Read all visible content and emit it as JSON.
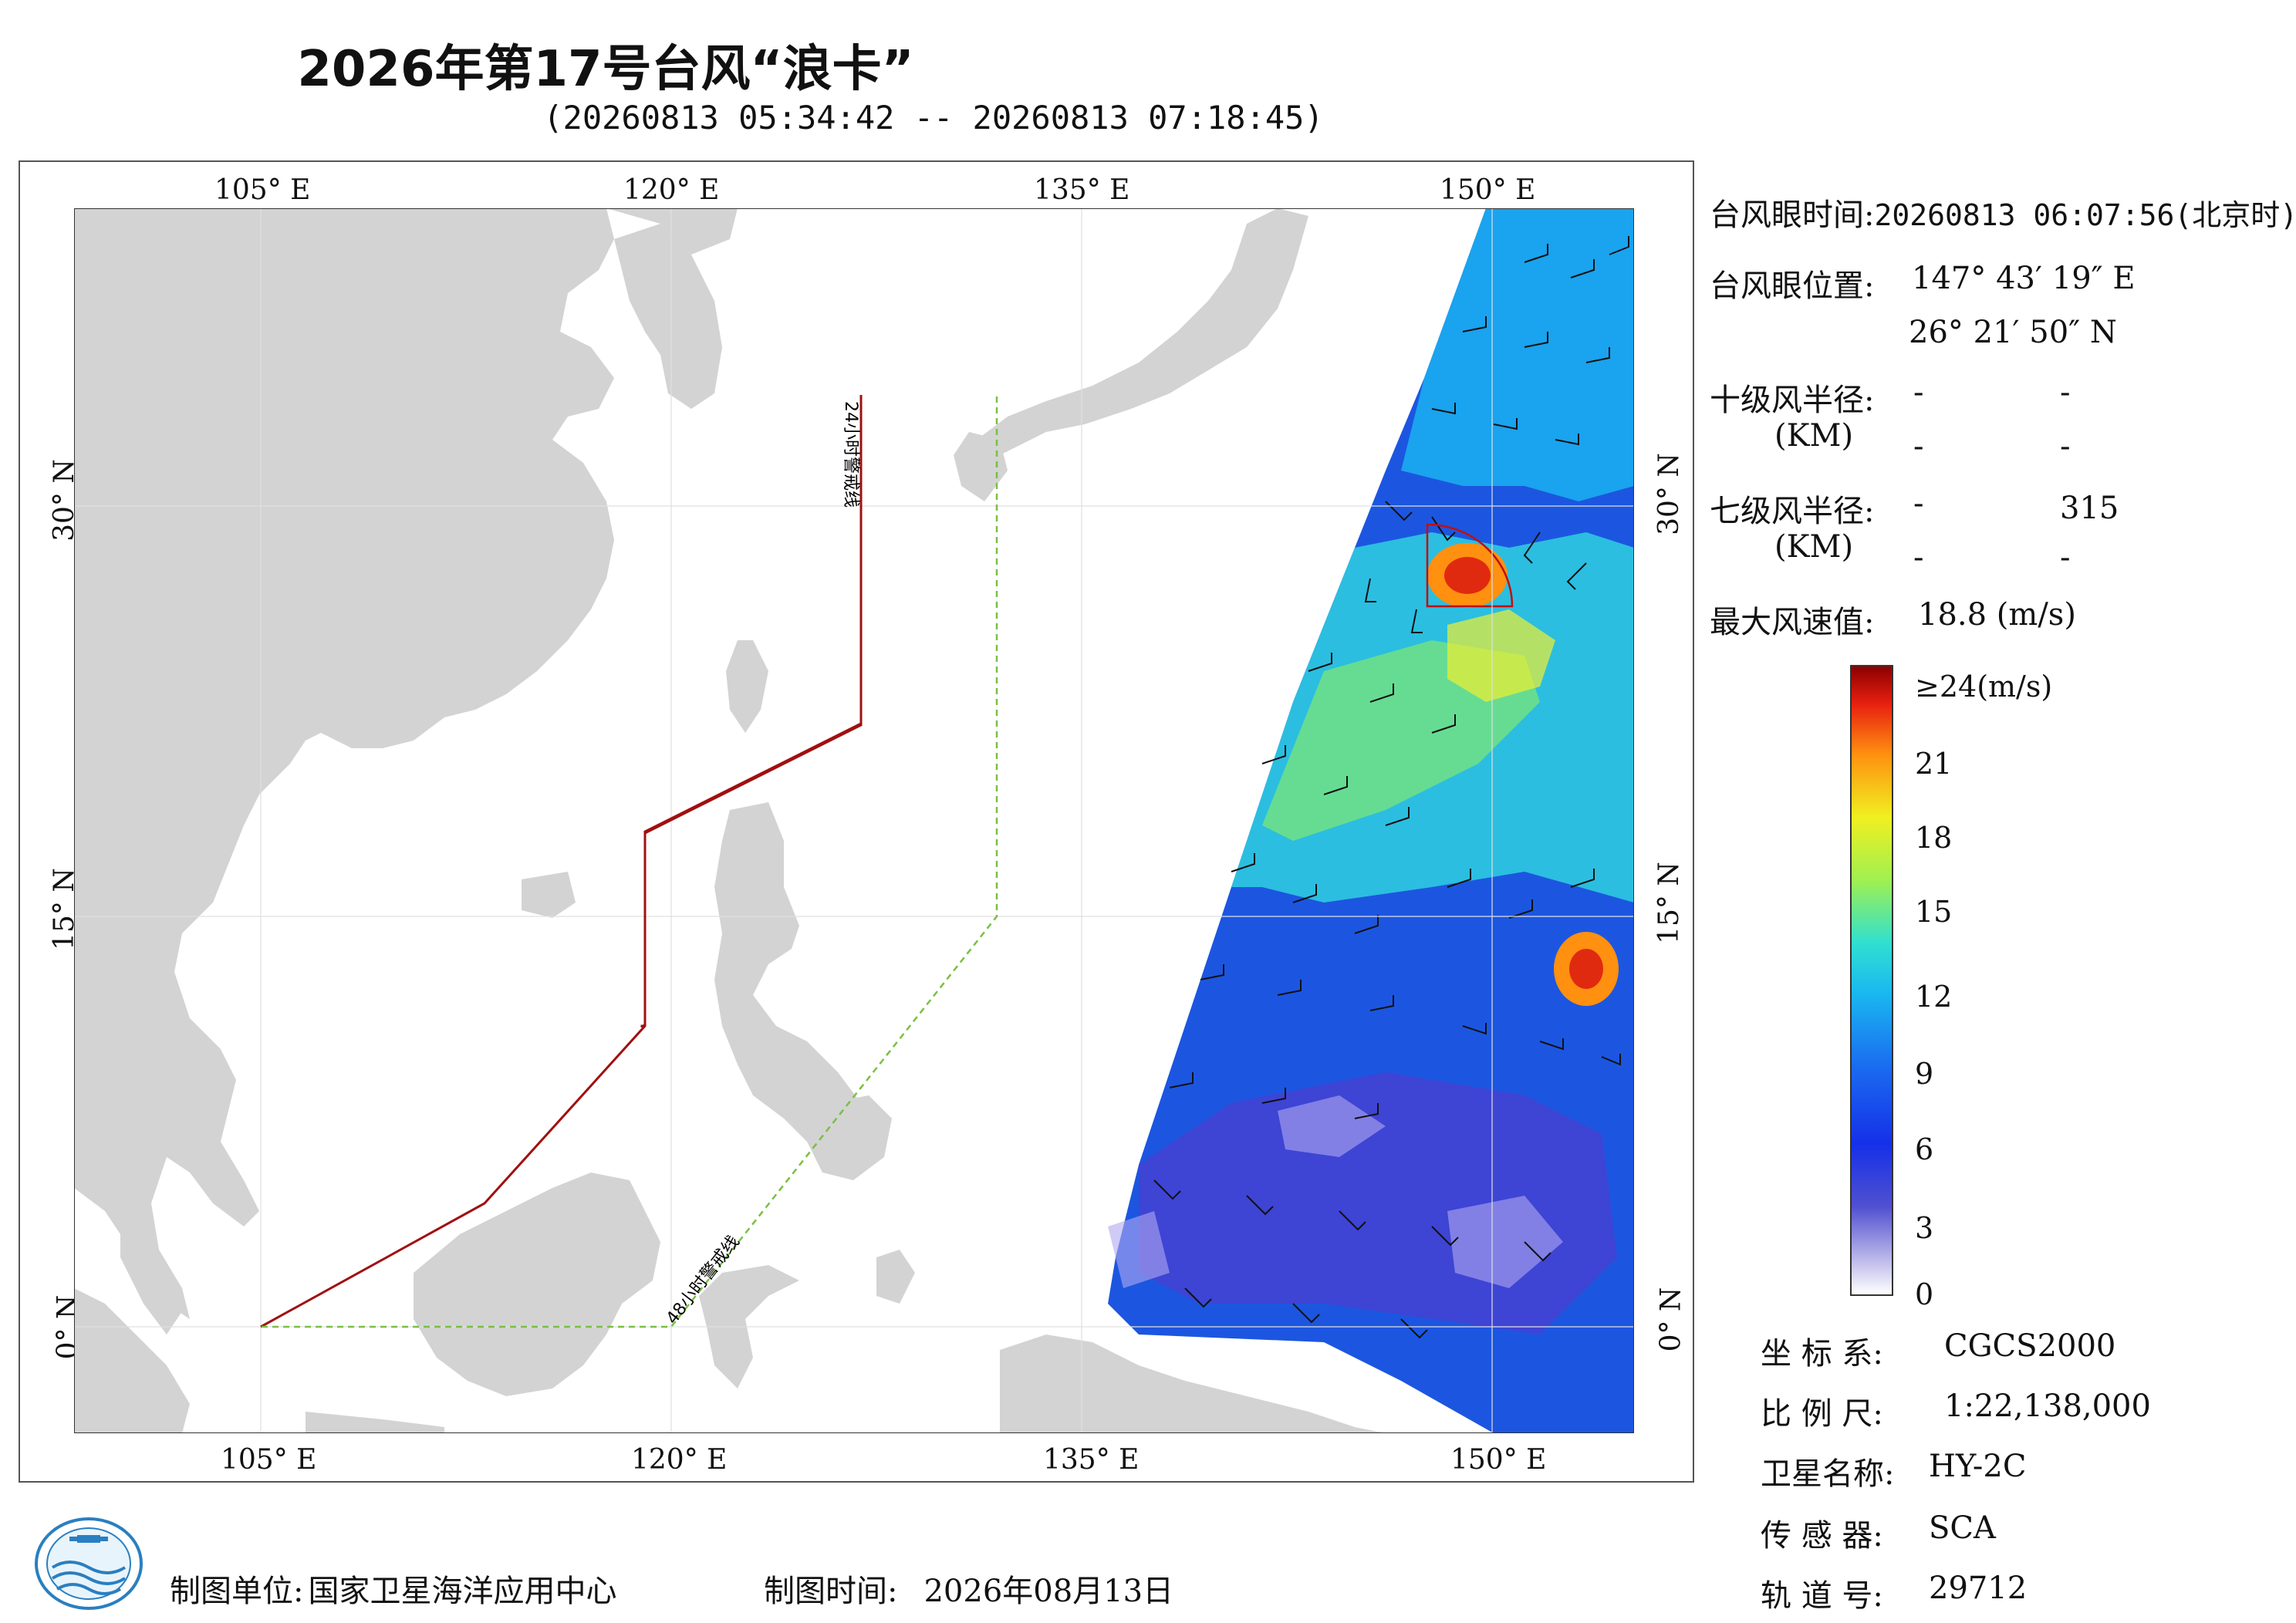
{
  "title": "2026年第17号台风“浪卡”",
  "subtitle": "(20260813 05:34:42 -- 20260813 07:18:45)",
  "map": {
    "lon_ticks_top": [
      "105° E",
      "120° E",
      "135° E",
      "150° E"
    ],
    "lon_ticks_bottom": [
      "105° E",
      "120° E",
      "135° E",
      "150° E"
    ],
    "lat_ticks_left": [
      "30° N",
      "15° N",
      "0° N"
    ],
    "lat_ticks_right": [
      "30° N",
      "15° N",
      "0° N"
    ],
    "lon_range": [
      98,
      155
    ],
    "lat_range": [
      -4,
      41
    ],
    "warning_line_24h": "24小时警戒线",
    "warning_line_48h": "48小时警戒线",
    "land_color": "#d3d3d3",
    "line_24h_color": "#a01010",
    "line_48h_color": "#7ac043",
    "eye_lon": 147.72,
    "eye_lat": 26.36
  },
  "info": {
    "eye_time_label": "台风眼时间:",
    "eye_time_value": "20260813 06:07:56(北京时)",
    "eye_pos_label": "台风眼位置:",
    "eye_lon": "147° 43′ 19″ E",
    "eye_lat": "26° 21′ 50″ N",
    "r10_label": "十级风半径:",
    "r10_unit": "(KM)",
    "r10_v1": "-",
    "r10_v2": "-",
    "r10_v3": "-",
    "r10_v4": "-",
    "r7_label": "七级风半径:",
    "r7_unit": "(KM)",
    "r7_v1": "-",
    "r7_v2": "315",
    "r7_v3": "-",
    "r7_v4": "-",
    "max_wind_label": "最大风速值:",
    "max_wind_value": "18.8  (m/s)"
  },
  "colorbar": {
    "labels": [
      "≥24(m/s)",
      "21",
      "18",
      "15",
      "12",
      "9",
      "6",
      "3",
      "0"
    ]
  },
  "meta": {
    "crs_label": "坐 标 系:",
    "crs_value": "CGCS2000",
    "scale_label": "比 例 尺:",
    "scale_value": "1:22,138,000",
    "satellite_label": "卫星名称:",
    "satellite_value": "HY-2C",
    "sensor_label": "传 感 器:",
    "sensor_value": "SCA",
    "orbit_label": "轨 道 号:",
    "orbit_value": "29712"
  },
  "footer": {
    "org_label": "制图单位:",
    "org_value": "国家卫星海洋应用中心",
    "date_label": "制图时间:",
    "date_value": "2026年08月13日"
  }
}
